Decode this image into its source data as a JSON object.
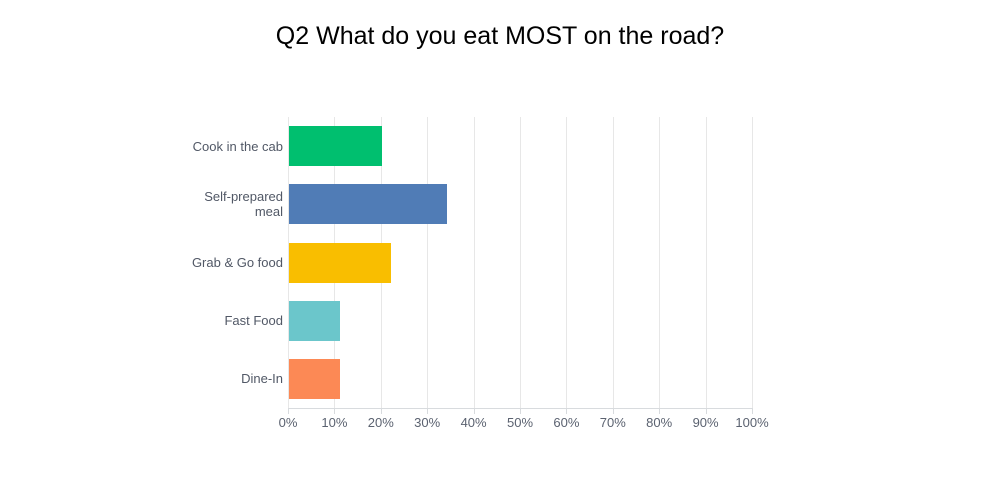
{
  "title": "Q2 What do you eat MOST on the road?",
  "chart_data": {
    "type": "bar",
    "orientation": "horizontal",
    "title": "Q2 What do you eat MOST on the road?",
    "categories": [
      "Cook in the cab",
      "Self-prepared meal",
      "Grab & Go food",
      "Fast Food",
      "Dine-In"
    ],
    "values": [
      20,
      34,
      22,
      11,
      11
    ],
    "value_unit": "%",
    "xlabel": "",
    "ylabel": "",
    "xlim": [
      0,
      100
    ],
    "x_ticks": [
      "0%",
      "10%",
      "20%",
      "30%",
      "40%",
      "50%",
      "60%",
      "70%",
      "80%",
      "90%",
      "100%"
    ],
    "grid": "vertical",
    "legend": "none",
    "bar_colors": [
      "#00BF6F",
      "#507CB6",
      "#F9BE00",
      "#6BC6CB",
      "#FC8955"
    ]
  },
  "colors": {
    "background": "#FFFFFF",
    "gridline": "#E7E7E7",
    "axis_line": "#D8DBDE",
    "tick_label": "#5B6270",
    "category_label": "#515866",
    "title_text": "#000000"
  }
}
